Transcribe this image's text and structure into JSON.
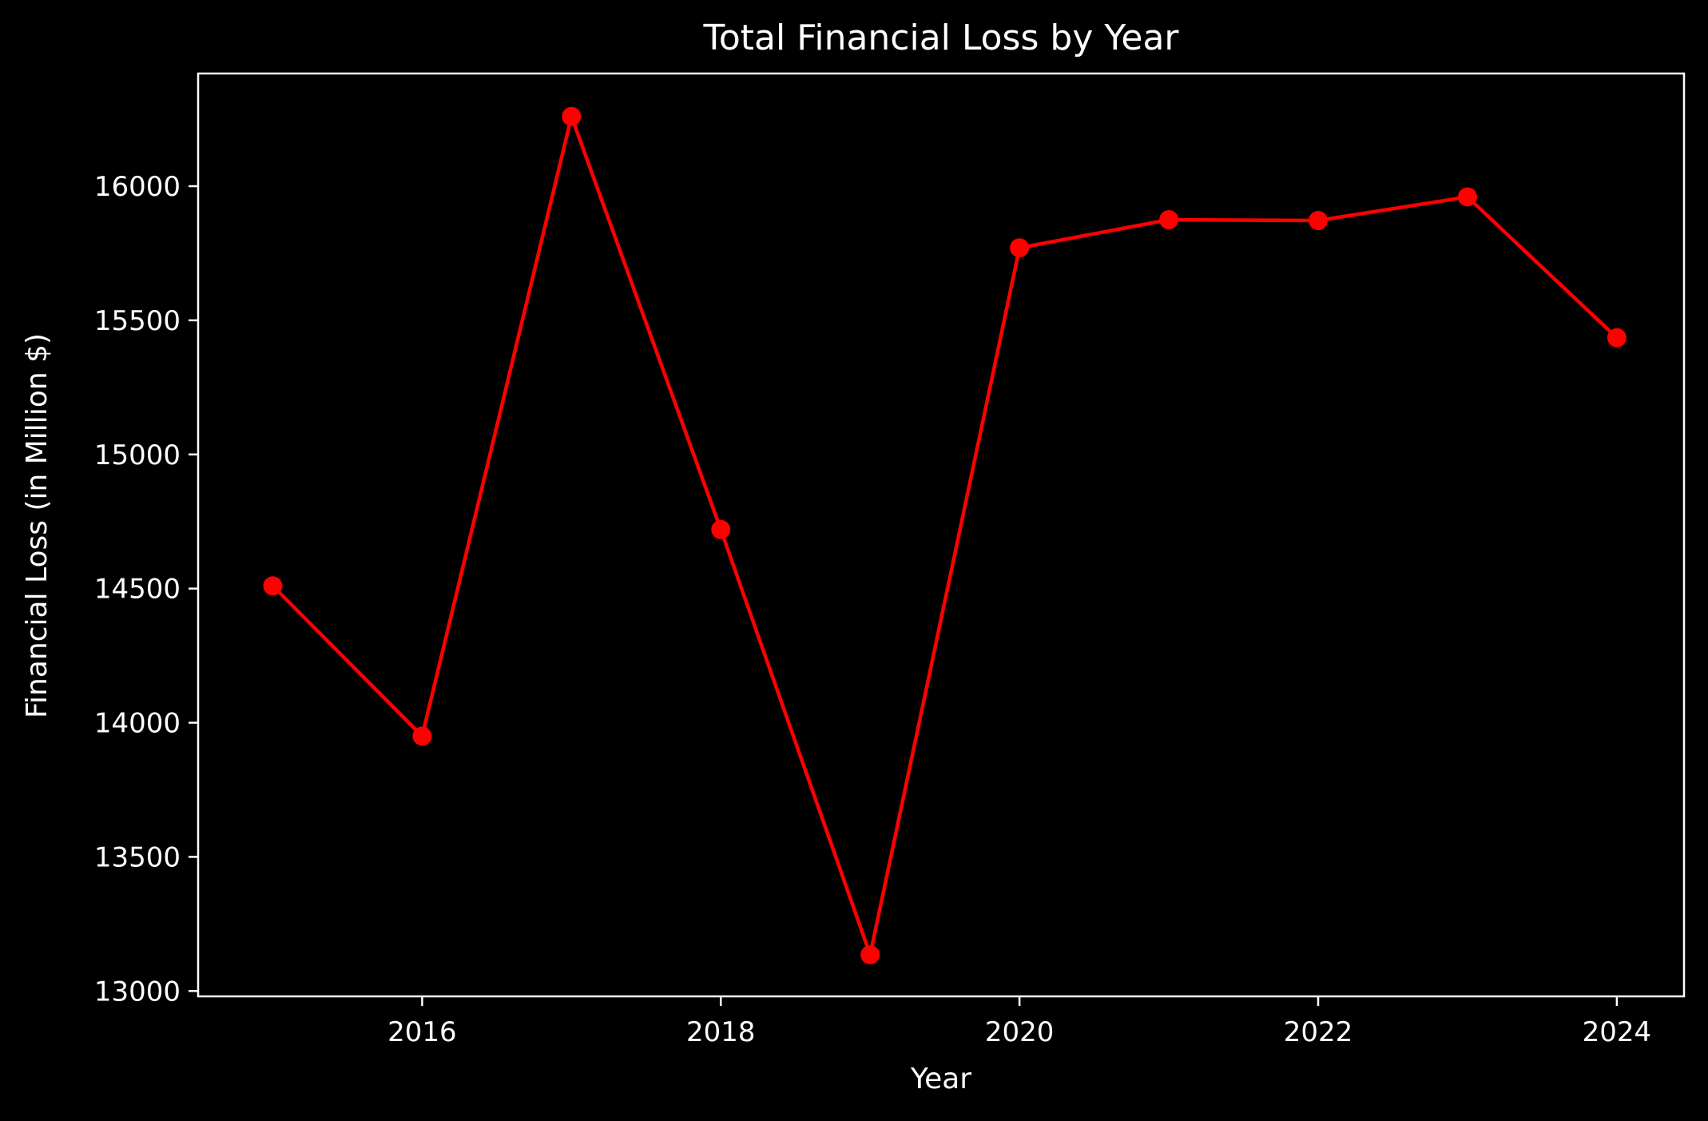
{
  "chart_data": {
    "type": "line",
    "title": "Total Financial Loss by Year",
    "xlabel": "Year",
    "ylabel": "Financial Loss (in Million $)",
    "x": [
      2015,
      2016,
      2017,
      2018,
      2019,
      2020,
      2021,
      2022,
      2023,
      2024
    ],
    "series": [
      {
        "values": [
          14510,
          13950,
          16260,
          14720,
          13135,
          15770,
          15875,
          15872,
          15960,
          15435
        ]
      }
    ],
    "xticks": [
      2016,
      2018,
      2020,
      2022,
      2024
    ],
    "yticks": [
      13000,
      13500,
      14000,
      14500,
      15000,
      15500,
      16000
    ],
    "xlim": [
      2014.5,
      2024.45
    ],
    "ylim": [
      12980,
      16420
    ],
    "grid": false,
    "line_color": "#ff0000",
    "background_color": "#000000",
    "foreground_color": "#ffffff"
  }
}
